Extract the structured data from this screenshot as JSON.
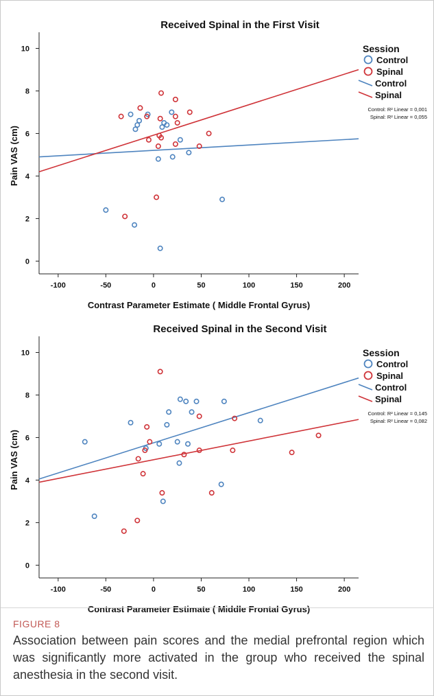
{
  "chart_data": [
    {
      "type": "scatter",
      "title": "Received Spinal in the First Visit",
      "xlabel": "Contrast Parameter Estimate ( Middle Frontal Gyrus)",
      "ylabel": "Pain VAS (cm)",
      "xlim": [
        -120,
        215
      ],
      "ylim": [
        -0.6,
        10.5
      ],
      "xticks": [
        -100,
        -50,
        0,
        50,
        100,
        150,
        200
      ],
      "yticks": [
        0,
        2,
        4,
        6,
        8,
        10
      ],
      "grid": false,
      "legend": {
        "title": "Session",
        "position": "right",
        "marker_labels": [
          "Control",
          "Spinal"
        ],
        "line_labels": [
          "Control",
          "Spinal"
        ],
        "fit_notes": [
          "Control: R² Linear = 0,001",
          "Spinal: R² Linear = 0,055"
        ]
      },
      "series": [
        {
          "name": "Control",
          "color": "#4e84bf",
          "points": [
            [
              -24,
              6.9
            ],
            [
              -15,
              6.6
            ],
            [
              -17,
              6.4
            ],
            [
              -19,
              6.2
            ],
            [
              -6,
              6.9
            ],
            [
              11,
              6.5
            ],
            [
              14,
              6.4
            ],
            [
              9,
              6.3
            ],
            [
              19,
              7.0
            ],
            [
              28,
              5.7
            ],
            [
              20,
              4.9
            ],
            [
              37,
              5.1
            ],
            [
              5,
              4.8
            ],
            [
              -50,
              2.4
            ],
            [
              -20,
              1.7
            ],
            [
              72,
              2.9
            ],
            [
              7,
              0.6
            ]
          ],
          "fit": {
            "x": [
              -120,
              215
            ],
            "y": [
              4.9,
              5.75
            ]
          }
        },
        {
          "name": "Spinal",
          "color": "#cf3338",
          "points": [
            [
              -34,
              6.8
            ],
            [
              -14,
              7.2
            ],
            [
              -7,
              6.8
            ],
            [
              8,
              7.9
            ],
            [
              23,
              7.6
            ],
            [
              38,
              7.0
            ],
            [
              7,
              6.7
            ],
            [
              23,
              6.8
            ],
            [
              25,
              6.5
            ],
            [
              8,
              5.8
            ],
            [
              -5,
              5.7
            ],
            [
              5,
              5.4
            ],
            [
              23,
              5.5
            ],
            [
              48,
              5.4
            ],
            [
              58,
              6.0
            ],
            [
              3,
              3.0
            ],
            [
              -30,
              2.1
            ],
            [
              6,
              5.9
            ]
          ],
          "fit": {
            "x": [
              -120,
              215
            ],
            "y": [
              4.2,
              9.0
            ]
          }
        }
      ]
    },
    {
      "type": "scatter",
      "title": "Received Spinal in the Second Visit",
      "xlabel": "Contrast Parameter Estimate ( Middle Frontal Gyrus)",
      "ylabel": "Pain VAS (cm)",
      "xlim": [
        -120,
        215
      ],
      "ylim": [
        -0.6,
        10.5
      ],
      "xticks": [
        -100,
        -50,
        0,
        50,
        100,
        150,
        200
      ],
      "yticks": [
        0,
        2,
        4,
        6,
        8,
        10
      ],
      "grid": false,
      "legend": {
        "title": "Session",
        "position": "right",
        "marker_labels": [
          "Control",
          "Spinal"
        ],
        "line_labels": [
          "Control",
          "Spinal"
        ],
        "fit_notes": [
          "Control: R² Linear = 0,145",
          "Spinal: R² Linear = 0,082"
        ]
      },
      "series": [
        {
          "name": "Control",
          "color": "#4e84bf",
          "points": [
            [
              -72,
              5.8
            ],
            [
              -62,
              2.3
            ],
            [
              -24,
              6.7
            ],
            [
              -8,
              5.5
            ],
            [
              6,
              5.7
            ],
            [
              10,
              3.0
            ],
            [
              14,
              6.6
            ],
            [
              16,
              7.2
            ],
            [
              25,
              5.8
            ],
            [
              28,
              7.8
            ],
            [
              34,
              7.7
            ],
            [
              36,
              5.7
            ],
            [
              40,
              7.2
            ],
            [
              45,
              7.7
            ],
            [
              27,
              4.8
            ],
            [
              71,
              3.8
            ],
            [
              74,
              7.7
            ],
            [
              112,
              6.8
            ]
          ],
          "fit": {
            "x": [
              -120,
              215
            ],
            "y": [
              4.05,
              8.8
            ]
          }
        },
        {
          "name": "Spinal",
          "color": "#cf3338",
          "points": [
            [
              7,
              9.1
            ],
            [
              -7,
              6.5
            ],
            [
              -4,
              5.8
            ],
            [
              -9,
              5.4
            ],
            [
              -16,
              5.0
            ],
            [
              -11,
              4.3
            ],
            [
              32,
              5.2
            ],
            [
              48,
              5.4
            ],
            [
              48,
              7.0
            ],
            [
              85,
              6.9
            ],
            [
              83,
              5.4
            ],
            [
              145,
              5.3
            ],
            [
              173,
              6.1
            ],
            [
              9,
              3.4
            ],
            [
              61,
              3.4
            ],
            [
              -17,
              2.1
            ],
            [
              -31,
              1.6
            ]
          ],
          "fit": {
            "x": [
              -120,
              215
            ],
            "y": [
              3.9,
              6.85
            ]
          }
        }
      ]
    }
  ],
  "caption": {
    "label": "FIGURE 8",
    "text": "Association between pain scores and the medial prefrontal region which was significantly more activated in the group who received the spinal anesthesia in the second visit."
  }
}
